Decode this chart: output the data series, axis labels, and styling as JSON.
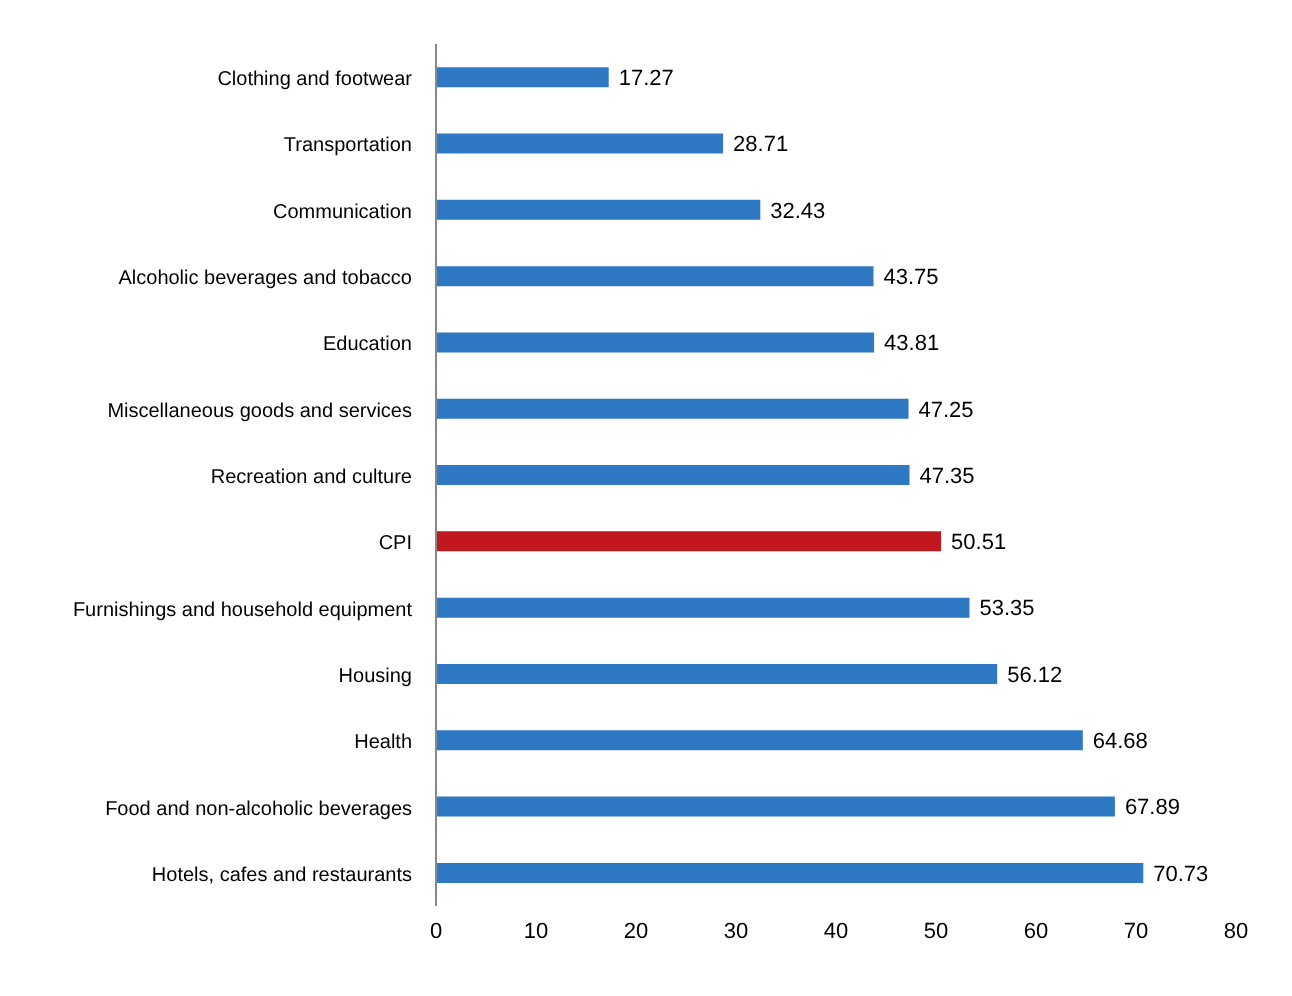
{
  "chart_data": {
    "type": "bar",
    "orientation": "horizontal",
    "categories": [
      "Clothing and footwear",
      "Transportation",
      "Communication",
      "Alcoholic beverages and tobacco",
      "Education",
      "Miscellaneous goods and services",
      "Recreation and culture",
      "CPI",
      "Furnishings and household equipment",
      "Housing",
      "Health",
      "Food and non-alcoholic beverages",
      "Hotels, cafes and restaurants"
    ],
    "values": [
      17.27,
      28.71,
      32.43,
      43.75,
      43.81,
      47.25,
      47.35,
      50.51,
      53.35,
      56.12,
      64.68,
      67.89,
      70.73
    ],
    "colors": [
      "#2e78c4",
      "#2e78c4",
      "#2e78c4",
      "#2e78c4",
      "#2e78c4",
      "#2e78c4",
      "#2e78c4",
      "#c0181e",
      "#2e78c4",
      "#2e78c4",
      "#2e78c4",
      "#2e78c4",
      "#2e78c4"
    ],
    "data_labels": true,
    "xlim": [
      0,
      80
    ],
    "xticks": [
      0,
      10,
      20,
      30,
      40,
      50,
      60,
      70,
      80
    ],
    "grid": false
  }
}
